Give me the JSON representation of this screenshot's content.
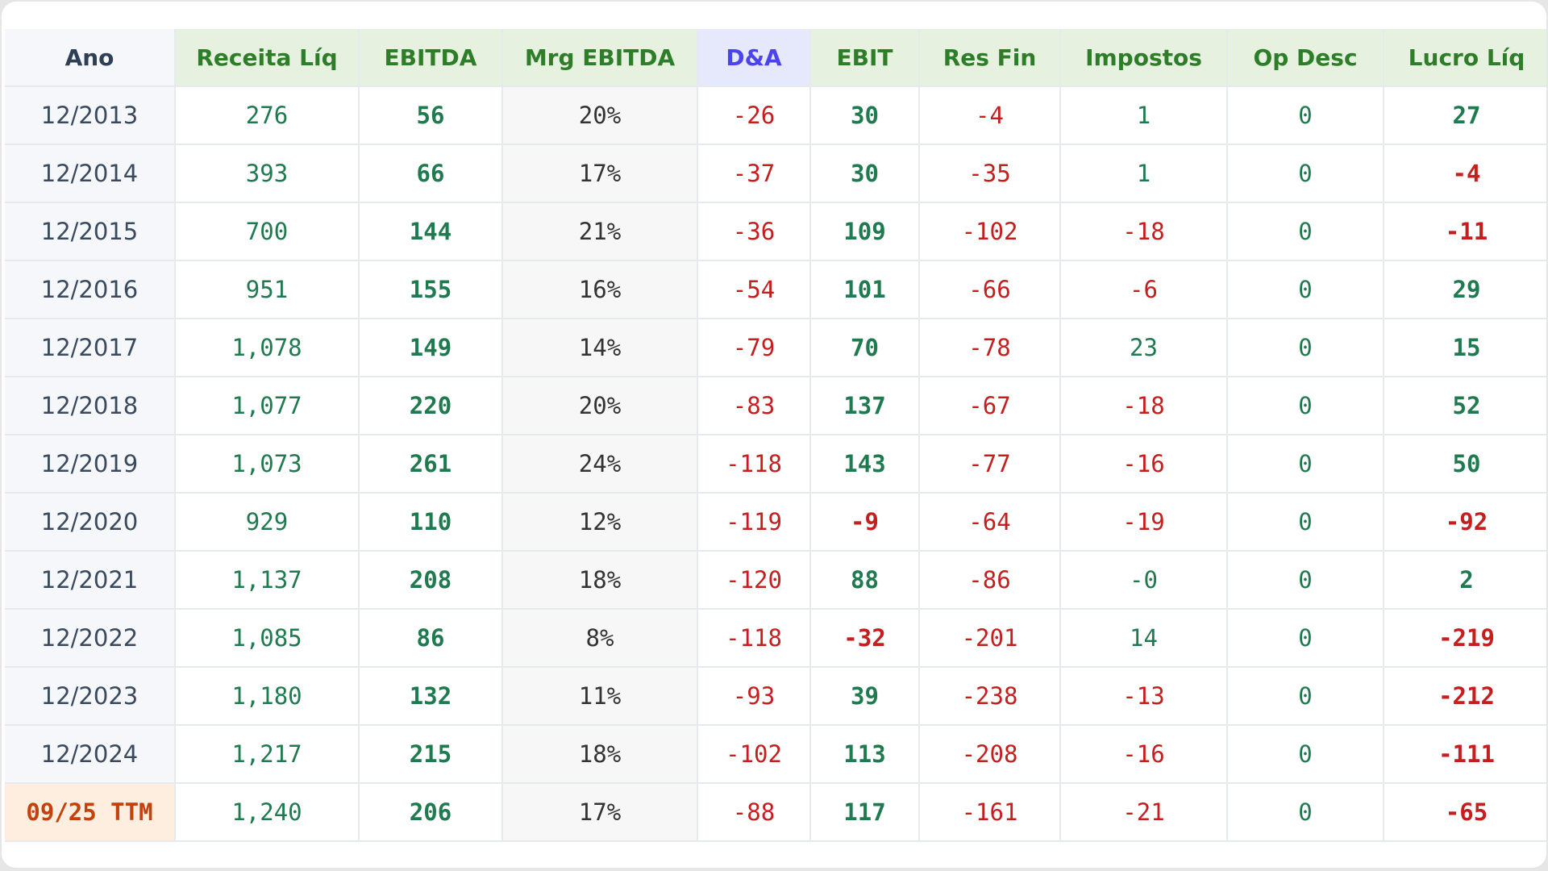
{
  "table": {
    "headers": [
      "Ano",
      "Receita Líq",
      "EBITDA",
      "Mrg EBITDA",
      "D&A",
      "EBIT",
      "Res Fin",
      "Impostos",
      "Op Desc",
      "Lucro Líq"
    ],
    "rows": [
      [
        "12/2013",
        "276",
        "56",
        "20%",
        "-26",
        "30",
        "-4",
        "1",
        "0",
        "27"
      ],
      [
        "12/2014",
        "393",
        "66",
        "17%",
        "-37",
        "30",
        "-35",
        "1",
        "0",
        "-4"
      ],
      [
        "12/2015",
        "700",
        "144",
        "21%",
        "-36",
        "109",
        "-102",
        "-18",
        "0",
        "-11"
      ],
      [
        "12/2016",
        "951",
        "155",
        "16%",
        "-54",
        "101",
        "-66",
        "-6",
        "0",
        "29"
      ],
      [
        "12/2017",
        "1,078",
        "149",
        "14%",
        "-79",
        "70",
        "-78",
        "23",
        "0",
        "15"
      ],
      [
        "12/2018",
        "1,077",
        "220",
        "20%",
        "-83",
        "137",
        "-67",
        "-18",
        "0",
        "52"
      ],
      [
        "12/2019",
        "1,073",
        "261",
        "24%",
        "-118",
        "143",
        "-77",
        "-16",
        "0",
        "50"
      ],
      [
        "12/2020",
        "929",
        "110",
        "12%",
        "-119",
        "-9",
        "-64",
        "-19",
        "0",
        "-92"
      ],
      [
        "12/2021",
        "1,137",
        "208",
        "18%",
        "-120",
        "88",
        "-86",
        "-0",
        "0",
        "2"
      ],
      [
        "12/2022",
        "1,085",
        "86",
        "8%",
        "-118",
        "-32",
        "-201",
        "14",
        "0",
        "-219"
      ],
      [
        "12/2023",
        "1,180",
        "132",
        "11%",
        "-93",
        "39",
        "-238",
        "-13",
        "0",
        "-212"
      ],
      [
        "12/2024",
        "1,217",
        "215",
        "18%",
        "-102",
        "113",
        "-208",
        "-16",
        "0",
        "-111"
      ],
      [
        "09/25 TTM",
        "1,240",
        "206",
        "17%",
        "-88",
        "117",
        "-161",
        "-21",
        "0",
        "-65"
      ]
    ]
  },
  "colors": {
    "positive": "#1f7a4f",
    "negative": "#c51e1e",
    "header_green": "#2e7d28",
    "header_da": "#4b43ee",
    "ttm_highlight": "#c2410c"
  }
}
